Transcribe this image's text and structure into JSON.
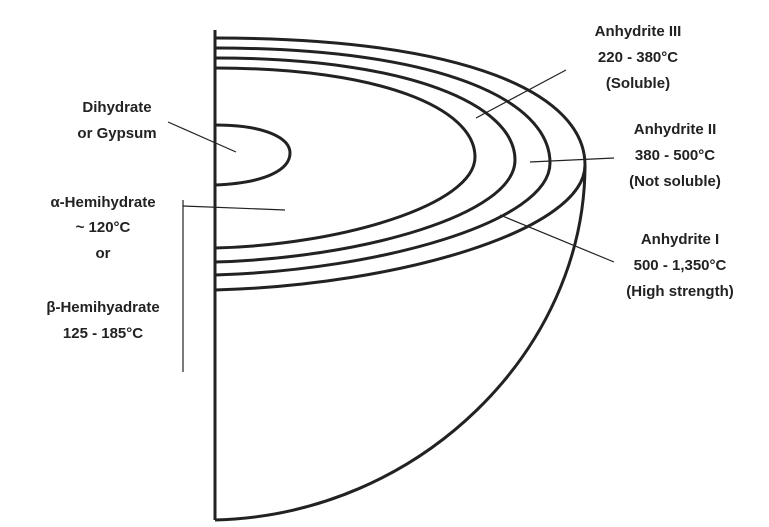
{
  "labels": {
    "dihydrate": [
      "Dihydrate",
      "or Gypsum"
    ],
    "alpha_hemihydrate": [
      "α-Hemihydrate",
      "~ 120°C",
      "or"
    ],
    "beta_hemihydrate": [
      "β-Hemihyadrate",
      "125 - 185°C"
    ],
    "anhydrite_3": [
      "Anhydrite III",
      "220 - 380°C",
      "(Soluble)"
    ],
    "anhydrite_2": [
      "Anhydrite II",
      "380 - 500°C",
      "(Not soluble)"
    ],
    "anhydrite_1": [
      "Anhydrite I",
      "500 - 1,350°C",
      "(High strength)"
    ]
  }
}
